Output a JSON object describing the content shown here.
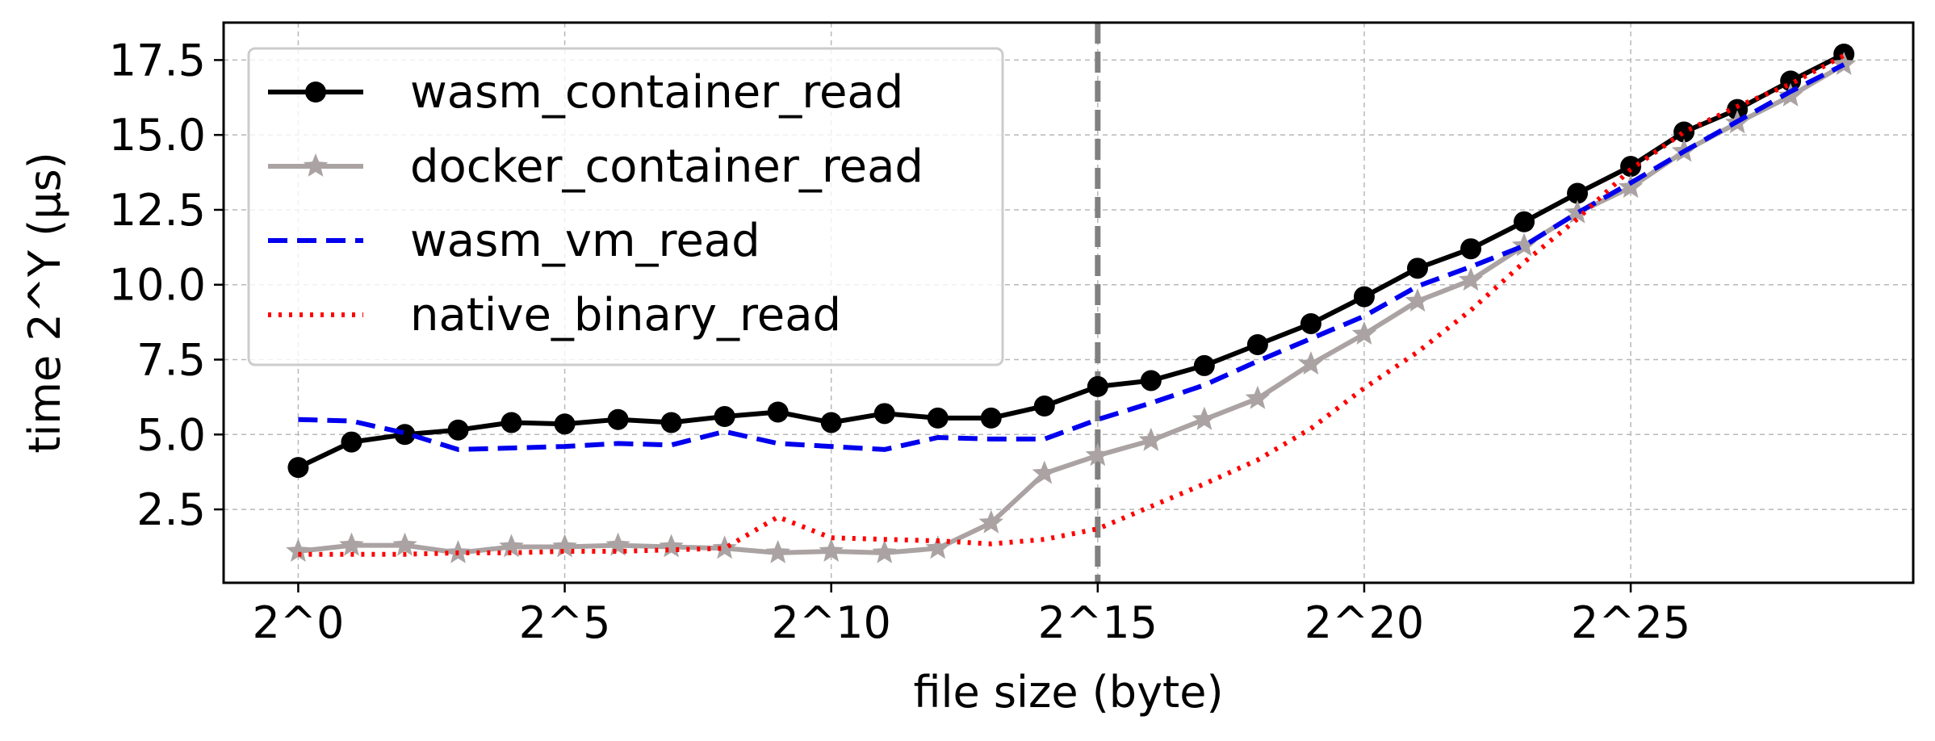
{
  "chart_data": {
    "type": "line",
    "xlabel": "file size (byte)",
    "ylabel": "time 2^Y (µs)",
    "x_tick_labels": [
      "2^0",
      "2^5",
      "2^10",
      "2^15",
      "2^20",
      "2^25"
    ],
    "x_tick_values": [
      0,
      5,
      10,
      15,
      20,
      25
    ],
    "y_tick_labels": [
      "2.5",
      "5.0",
      "7.5",
      "10.0",
      "12.5",
      "15.0",
      "17.5"
    ],
    "y_tick_values": [
      2.5,
      5.0,
      7.5,
      10.0,
      12.5,
      15.0,
      17.5
    ],
    "xlim": [
      -1.4,
      30.3
    ],
    "ylim": [
      0.05,
      18.75
    ],
    "grid": true,
    "legend_position": "upper-left",
    "reference_line": {
      "x": 15,
      "style": "dashed",
      "color": "#808080"
    },
    "x": [
      0,
      1,
      2,
      3,
      4,
      5,
      6,
      7,
      8,
      9,
      10,
      11,
      12,
      13,
      14,
      15,
      16,
      17,
      18,
      19,
      20,
      21,
      22,
      23,
      24,
      25,
      26,
      27,
      28,
      29
    ],
    "series": [
      {
        "name": "wasm_container_read",
        "color": "#000000",
        "line_style": "solid",
        "marker": "circle",
        "values": [
          3.9,
          4.75,
          5.0,
          5.15,
          5.4,
          5.35,
          5.5,
          5.4,
          5.6,
          5.75,
          5.4,
          5.7,
          5.55,
          5.55,
          5.95,
          6.6,
          6.8,
          7.3,
          8.0,
          8.7,
          9.6,
          10.55,
          11.2,
          12.1,
          13.05,
          13.95,
          15.1,
          15.85,
          16.8,
          17.7
        ]
      },
      {
        "name": "docker_container_read",
        "color": "#aba3a3",
        "line_style": "solid",
        "marker": "star",
        "values": [
          1.1,
          1.3,
          1.3,
          1.05,
          1.25,
          1.25,
          1.3,
          1.25,
          1.2,
          1.05,
          1.1,
          1.05,
          1.2,
          2.05,
          3.7,
          4.3,
          4.8,
          5.5,
          6.2,
          7.35,
          8.35,
          9.45,
          10.15,
          11.3,
          12.4,
          13.25,
          14.45,
          15.4,
          16.3,
          17.35
        ]
      },
      {
        "name": "wasm_vm_read",
        "color": "#0000ee",
        "line_style": "dashed",
        "marker": "none",
        "values": [
          5.5,
          5.45,
          5.05,
          4.5,
          4.55,
          4.6,
          4.7,
          4.65,
          5.1,
          4.7,
          4.6,
          4.5,
          4.9,
          4.85,
          4.85,
          5.5,
          6.05,
          6.65,
          7.45,
          8.2,
          8.95,
          9.95,
          10.6,
          11.3,
          12.4,
          13.4,
          14.45,
          15.45,
          16.45,
          17.35
        ]
      },
      {
        "name": "native_binary_read",
        "color": "#ff0000",
        "line_style": "dotted",
        "marker": "none",
        "values": [
          1.0,
          1.0,
          1.0,
          1.05,
          1.05,
          1.1,
          1.1,
          1.15,
          1.2,
          2.25,
          1.55,
          1.5,
          1.45,
          1.35,
          1.5,
          1.85,
          2.6,
          3.35,
          4.15,
          5.2,
          6.55,
          7.75,
          9.15,
          10.75,
          12.2,
          13.85,
          15.1,
          15.95,
          16.7,
          17.65
        ]
      }
    ]
  }
}
